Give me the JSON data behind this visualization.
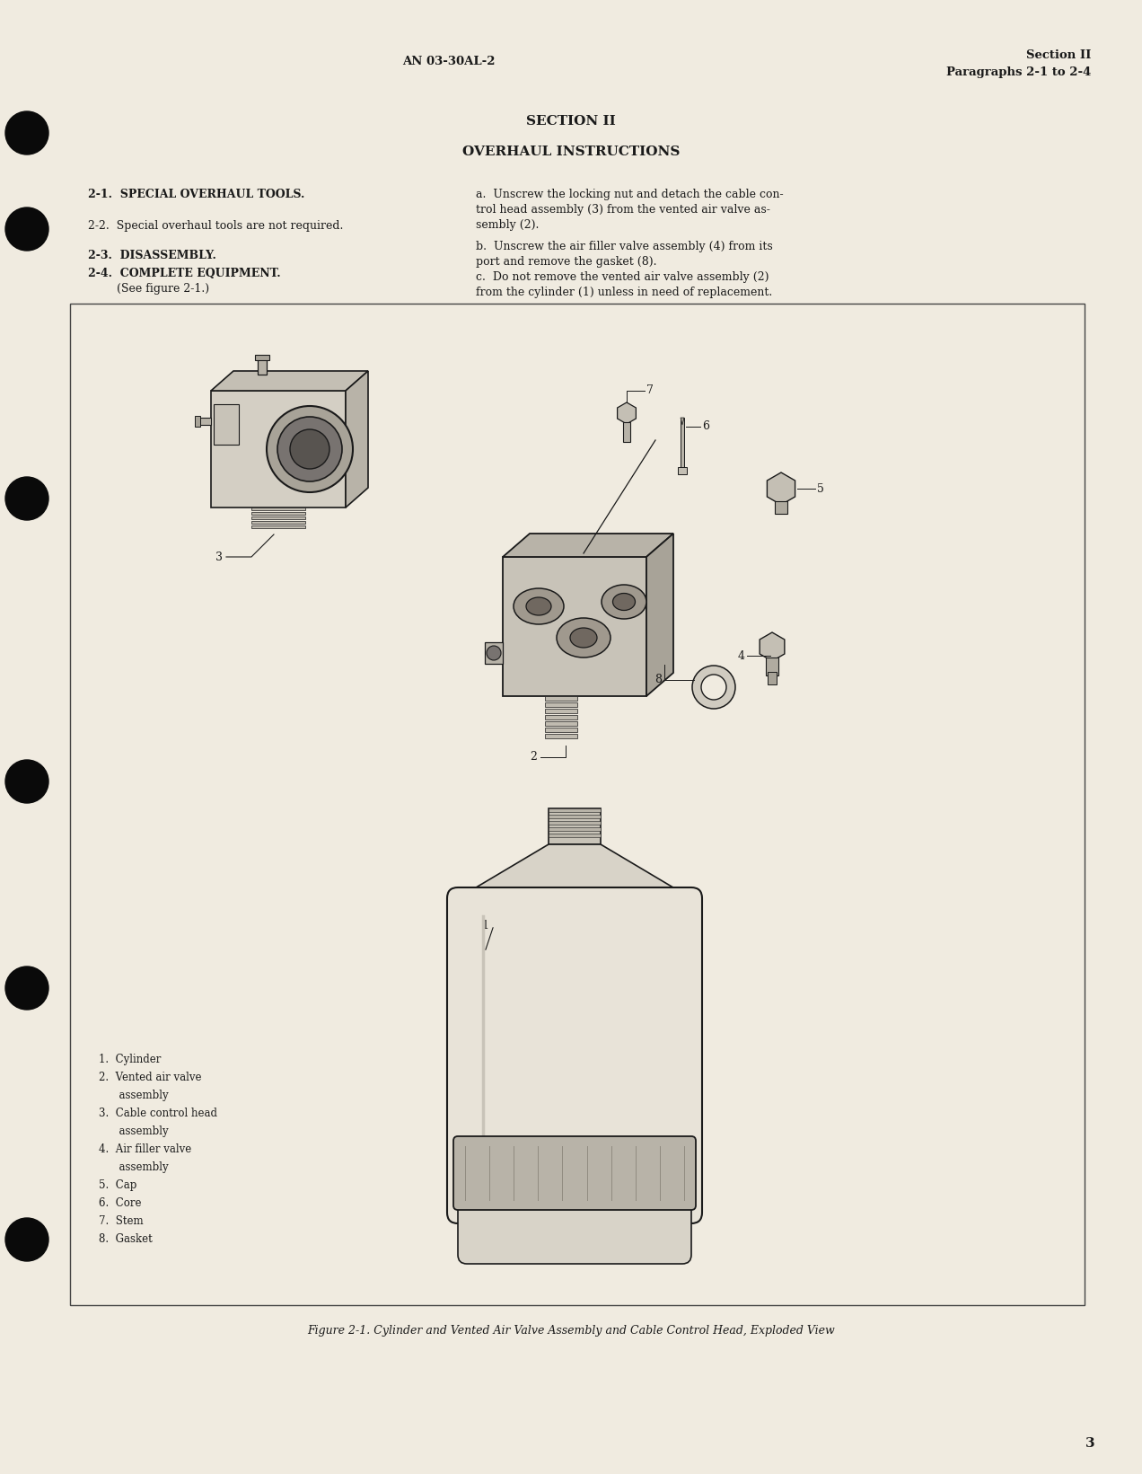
{
  "page_bg_color": "#f0ebe0",
  "header_left": "AN 03-30AL-2",
  "header_right_line1": "Section II",
  "header_right_line2": "Paragraphs 2-1 to 2-4",
  "section_title": "SECTION II",
  "section_subtitle": "OVERHAUL INSTRUCTIONS",
  "left_col_items": [
    {
      "label": "2-1.  SPECIAL OVERHAUL TOOLS.",
      "bold": true
    },
    {
      "label": "2-2.  Special overhaul tools are not required.",
      "bold": false
    },
    {
      "label": "2-3.  DISASSEMBLY.",
      "bold": true
    },
    {
      "label": "2-4.  COMPLETE EQUIPMENT.",
      "bold": true
    },
    {
      "label": "        (See figure 2-1.)",
      "bold": false
    }
  ],
  "right_col_para_a": "a.  Unscrew the locking nut and detach the cable con-\ntrol head assembly (3) from the vented air valve as-\nsembly (2).",
  "right_col_para_b": "b.  Unscrew the air filler valve assembly (4) from its\nport and remove the gasket (8).",
  "right_col_para_c": "c.  Do not remove the vented air valve assembly (2)\nfrom the cylinder (1) unless in need of replacement.",
  "figure_caption": "Figure 2-1. Cylinder and Vented Air Valve Assembly and Cable Control Head, Exploded View",
  "legend_items": [
    "1.  Cylinder",
    "2.  Vented air valve",
    "      assembly",
    "3.  Cable control head",
    "      assembly",
    "4.  Air filler valve",
    "      assembly",
    "5.  Cap",
    "6.  Core",
    "7.  Stem",
    "8.  Gasket"
  ],
  "page_number": "3",
  "text_color": "#1a1a1a",
  "border_color": "#444444",
  "punch_hole_color": "#0a0a0a"
}
